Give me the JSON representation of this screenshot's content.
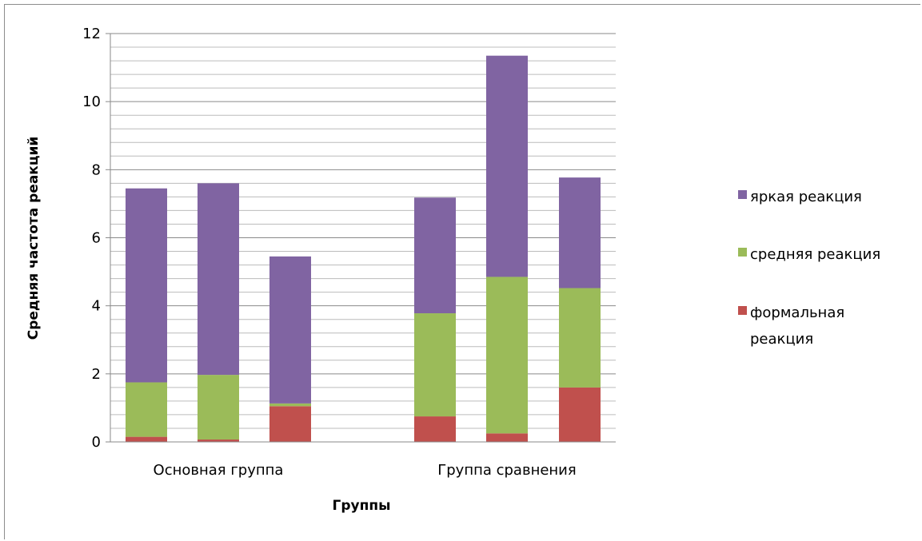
{
  "chart_data": {
    "type": "bar",
    "stacked": true,
    "xlabel": "Группы",
    "ylabel": "Средняя частота реакций",
    "ylim": [
      0,
      12
    ],
    "yticks": [
      0,
      2,
      4,
      6,
      8,
      10,
      12
    ],
    "grid": true,
    "legend_position": "right",
    "groups": [
      "Основная группа",
      "Группа сравнения"
    ],
    "bars_per_group": 3,
    "series": [
      {
        "name": "формальная реакция",
        "color": "#c0504d",
        "values": [
          0.15,
          0.07,
          1.05,
          0.75,
          0.25,
          1.6
        ]
      },
      {
        "name": "средняя реакция",
        "color": "#9bbb59",
        "values": [
          1.6,
          1.9,
          0.08,
          3.03,
          4.6,
          2.92
        ]
      },
      {
        "name": "яркая реакция",
        "color": "#8064a2",
        "values": [
          5.7,
          5.63,
          4.32,
          3.4,
          6.5,
          3.25
        ]
      }
    ],
    "legend_order": [
      "яркая реакция",
      "средняя реакция",
      "формальная реакция"
    ]
  }
}
